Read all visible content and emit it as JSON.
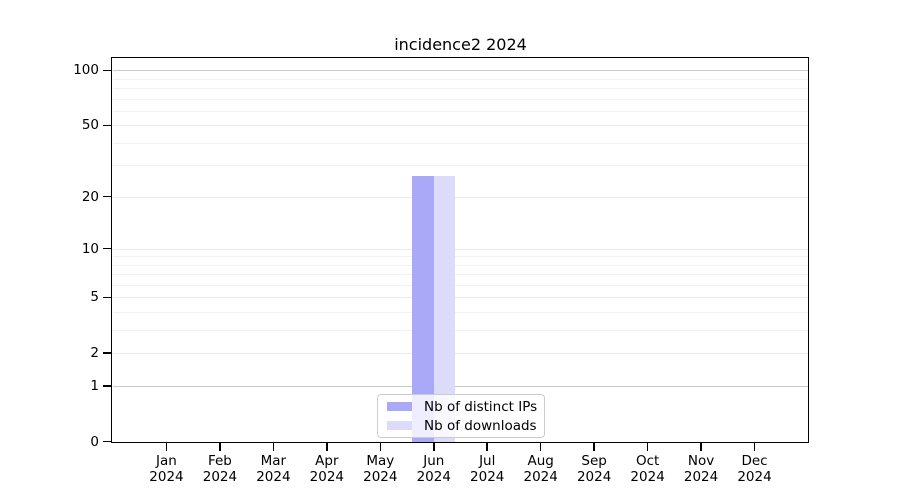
{
  "chart_data": {
    "type": "bar",
    "title": "incidence2 2024",
    "categories": [
      "Jan",
      "Feb",
      "Mar",
      "Apr",
      "May",
      "Jun",
      "Jul",
      "Aug",
      "Sep",
      "Oct",
      "Nov",
      "Dec"
    ],
    "category_year": "2024",
    "series": [
      {
        "name": "Nb of distinct IPs",
        "color": "#a9a9f7",
        "values": [
          0,
          0,
          0,
          0,
          0,
          26,
          0,
          0,
          0,
          0,
          0,
          0
        ]
      },
      {
        "name": "Nb of downloads",
        "color": "#dcdcfa",
        "values": [
          0,
          0,
          0,
          0,
          0,
          26,
          0,
          0,
          0,
          0,
          0,
          0
        ]
      }
    ],
    "xlabel": "",
    "ylabel": "",
    "yscale": "log10(1+x)",
    "ylim": [
      0,
      116
    ],
    "y_major_ticks": [
      0,
      1,
      2,
      5,
      10,
      20,
      50,
      100
    ],
    "y_minor_gridlines": [
      3,
      4,
      6,
      7,
      8,
      9,
      30,
      40,
      60,
      70,
      80,
      90
    ],
    "emphasized_gridlines": [
      1,
      100
    ],
    "grid": true,
    "legend_position": "lower center"
  },
  "colors": {
    "background": "#ffffff",
    "spine": "#000000",
    "grid_major": "#ebebeb",
    "grid_minor": "#f2f2f2",
    "grid_emphasized": "#c8c8c8",
    "bar_distinct_ips": "#a9a9f7",
    "bar_downloads": "#dcdcfa"
  }
}
